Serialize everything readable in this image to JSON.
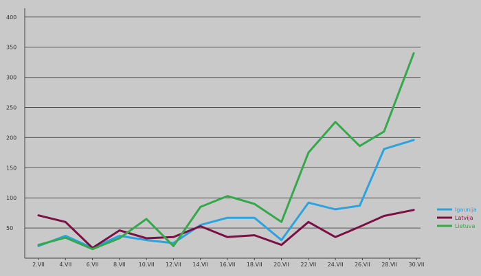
{
  "chart_data": {
    "type": "line",
    "title": "",
    "xlabel": "",
    "ylabel": "",
    "ylim": [
      0,
      400
    ],
    "grid": true,
    "legend_position": "right",
    "x": [
      "2.VII",
      "4.VII",
      "6.VII",
      "8.VII",
      "10.VII",
      "12.VII",
      "14.VII",
      "16.VII",
      "18.VII",
      "20.VII",
      "22.VII",
      "24.VII",
      "26.VII",
      "28.VII",
      "30.VII"
    ],
    "y_ticks": [
      "400",
      "350",
      "300",
      "250",
      "200",
      "150",
      "100",
      "50"
    ],
    "series": [
      {
        "name": "Igaunija",
        "color": "#2aa3df",
        "x": [
          2,
          4,
          6,
          8,
          10,
          12,
          14,
          16,
          18,
          20,
          22,
          24,
          25.8,
          27.6,
          29.8
        ],
        "values": [
          20,
          37,
          17,
          37,
          30,
          25,
          55,
          67,
          67,
          30,
          92,
          81,
          87,
          181,
          196
        ]
      },
      {
        "name": "Latvija",
        "color": "#7a1145",
        "x": [
          2,
          4,
          6,
          8,
          10,
          12,
          14,
          16,
          18,
          20,
          22,
          24,
          25.8,
          27.6,
          29.8
        ],
        "values": [
          71,
          60,
          17,
          46,
          33,
          35,
          53,
          35,
          38,
          22,
          60,
          35,
          52,
          70,
          80
        ]
      },
      {
        "name": "Lietuva",
        "color": "#34a84a",
        "x": [
          2,
          4,
          6,
          8,
          10,
          12,
          14,
          16,
          18,
          20,
          22,
          24,
          25.8,
          27.6,
          29.8
        ],
        "values": [
          22,
          34,
          15,
          33,
          65,
          20,
          85,
          103,
          90,
          60,
          175,
          226,
          186,
          210,
          340
        ]
      }
    ]
  }
}
